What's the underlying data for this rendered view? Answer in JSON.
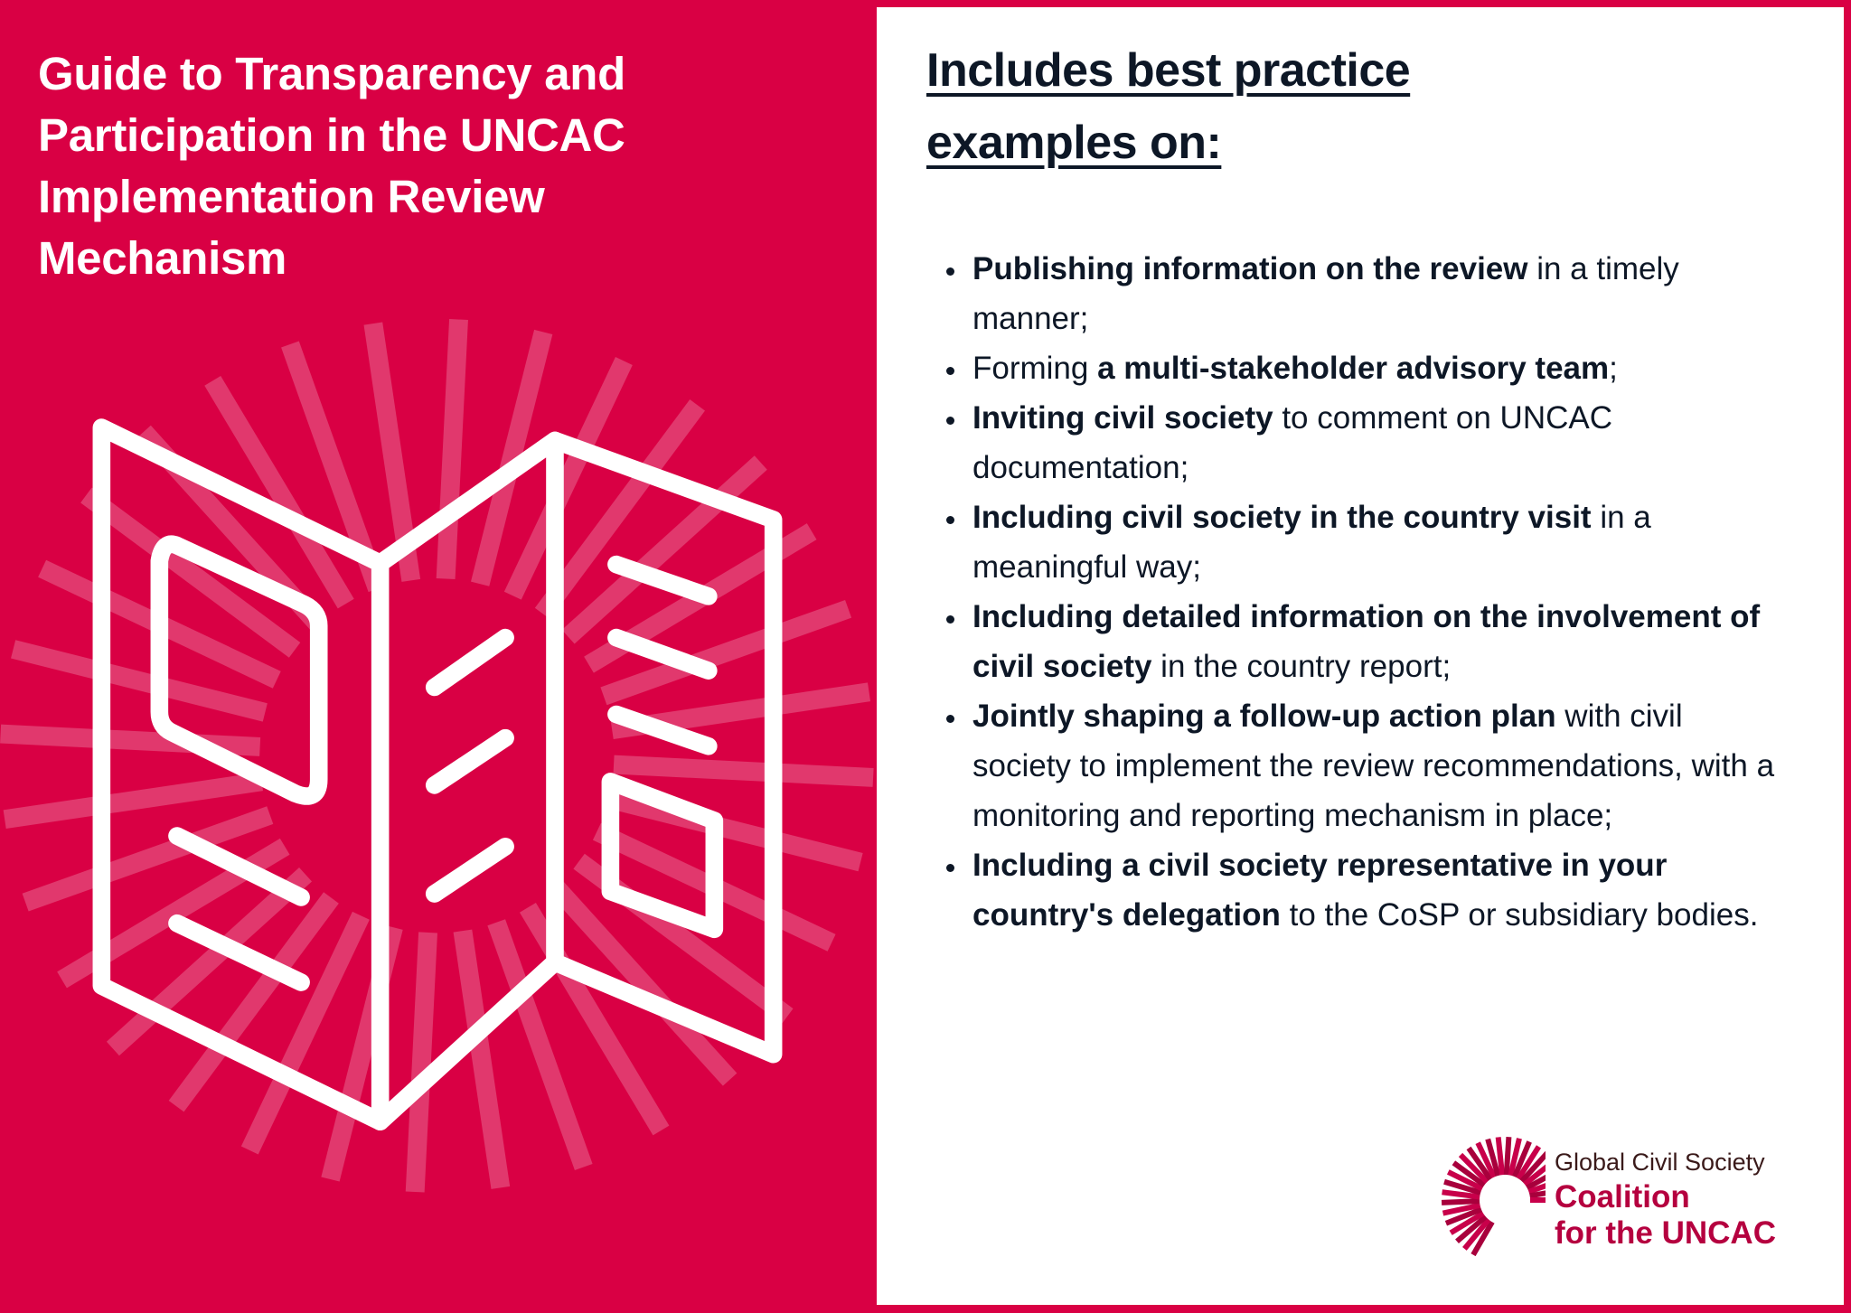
{
  "colors": {
    "background": "#d90044",
    "text": "#0d1726",
    "logo": "#b5003f"
  },
  "title": "Guide to Transparency and Participation in the UNCAC Implementation Review Mechanism",
  "heading": {
    "line1": "Includes best practice",
    "line2": "examples on:"
  },
  "bullets": [
    {
      "bold": "Publishing information on the review",
      "rest": " in a timely manner;",
      "pre": ""
    },
    {
      "pre": "Forming ",
      "bold": "a multi-stakeholder advisory team",
      "rest": ";"
    },
    {
      "pre": "",
      "bold": "Inviting civil society",
      "rest": " to comment on UNCAC documentation;"
    },
    {
      "pre": "",
      "bold": "Including civil society in the country visit",
      "rest": " in a meaningful way;"
    },
    {
      "pre": "",
      "bold": "Including detailed information on the involvement of civil society",
      "rest": " in the country report;"
    },
    {
      "pre": "",
      "bold": "Jointly shaping a follow-up action plan",
      "rest": " with civil society to implement the review recommendations, with a monitoring and reporting mechanism in place;"
    },
    {
      "pre": "",
      "bold": "Including a civil society representative in your country's delegation",
      "rest": " to the CoSP or subsidiary bodies."
    }
  ],
  "logo": {
    "line1": "Global Civil Society",
    "line2": "Coalition",
    "line3": "for the UNCAC"
  },
  "illustration": "folded-map-icon"
}
